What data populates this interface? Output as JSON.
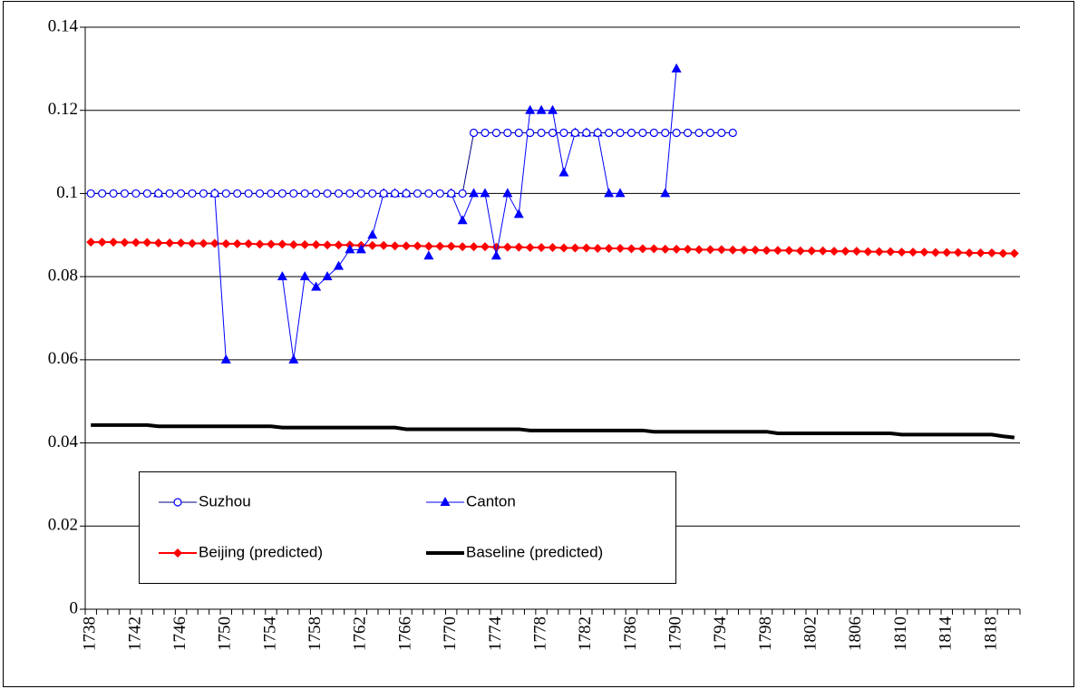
{
  "chart_data": {
    "type": "line",
    "categories": [
      "1738",
      null,
      null,
      null,
      "1742",
      null,
      null,
      null,
      "1746",
      null,
      null,
      null,
      "1750",
      null,
      null,
      null,
      "1754",
      null,
      null,
      null,
      "1758",
      null,
      null,
      null,
      "1762",
      null,
      null,
      null,
      "1766",
      null,
      null,
      null,
      "1770",
      null,
      null,
      null,
      "1774",
      null,
      null,
      null,
      "1778",
      null,
      null,
      null,
      "1782",
      null,
      null,
      null,
      "1786",
      null,
      null,
      null,
      "1790",
      null,
      null,
      null,
      "1794",
      null,
      null,
      null,
      "1798",
      null,
      null,
      null,
      "1802",
      null,
      null,
      null,
      "1806",
      null,
      null,
      null,
      "1810",
      null,
      null,
      null,
      "1814",
      null,
      null,
      null,
      "1818",
      null,
      null
    ],
    "series": [
      {
        "name": "Suzhou",
        "color": "#0000ff",
        "line_color": "#000080",
        "marker": "circle",
        "line_width": 1,
        "values": [
          0.1,
          0.1,
          0.1,
          0.1,
          0.1,
          0.1,
          0.1,
          0.1,
          0.1,
          0.1,
          0.1,
          0.1,
          0.1,
          0.1,
          0.1,
          0.1,
          0.1,
          0.1,
          0.1,
          0.1,
          0.1,
          0.1,
          0.1,
          0.1,
          0.1,
          0.1,
          0.1,
          0.1,
          0.1,
          0.1,
          0.1,
          0.1,
          0.1,
          0.1,
          0.1146,
          0.1146,
          0.1146,
          0.1146,
          0.1146,
          0.1146,
          0.1146,
          0.1146,
          0.1146,
          0.1146,
          0.1146,
          0.1146,
          0.1146,
          0.1146,
          0.1146,
          0.1146,
          0.1146,
          0.1146,
          0.1146,
          0.1146,
          0.1146,
          0.1146,
          0.1146,
          0.1146,
          null,
          null,
          null,
          null,
          null,
          null,
          null,
          null,
          null,
          null,
          null,
          null,
          null,
          null,
          null,
          null,
          null,
          null,
          null,
          null,
          null,
          null,
          null,
          null,
          null
        ]
      },
      {
        "name": "Canton",
        "color": "#0000ff",
        "line_color": "#0000ff",
        "marker": "triangle",
        "line_width": 1,
        "values": [
          null,
          null,
          null,
          null,
          null,
          null,
          0.1,
          null,
          null,
          null,
          null,
          0.1,
          0.06,
          null,
          null,
          null,
          null,
          0.08,
          0.06,
          0.08,
          0.0775,
          0.08,
          0.0825,
          0.0865,
          0.0865,
          0.09,
          0.1,
          0.1,
          0.1,
          null,
          0.085,
          null,
          0.1,
          0.0935,
          0.1,
          0.1,
          0.085,
          0.1,
          0.095,
          0.12,
          0.12,
          0.12,
          0.105,
          0.1146,
          0.1146,
          0.1146,
          0.1,
          0.1,
          null,
          null,
          null,
          0.1,
          0.13,
          null,
          null,
          null,
          null,
          null,
          null,
          null,
          null,
          null,
          null,
          null,
          null,
          null,
          null,
          null,
          null,
          null,
          null,
          null,
          null,
          null,
          null,
          null,
          null,
          null,
          null,
          null,
          null,
          null,
          null
        ]
      },
      {
        "name": "Beijing (predicted)",
        "color": "#ff0000",
        "line_color": "#ff0000",
        "marker": "diamond",
        "line_width": 2,
        "values": [
          0.0883,
          0.0883,
          0.0883,
          0.0882,
          0.0882,
          0.0882,
          0.0881,
          0.0881,
          0.0881,
          0.088,
          0.088,
          0.088,
          0.0879,
          0.0879,
          0.0879,
          0.0878,
          0.0878,
          0.0878,
          0.0877,
          0.0877,
          0.0877,
          0.0876,
          0.0876,
          0.0876,
          0.0875,
          0.0875,
          0.0875,
          0.0874,
          0.0874,
          0.0874,
          0.0873,
          0.0873,
          0.0873,
          0.0872,
          0.0872,
          0.0872,
          0.0871,
          0.0871,
          0.0871,
          0.087,
          0.087,
          0.087,
          0.0869,
          0.0869,
          0.0869,
          0.0868,
          0.0868,
          0.0868,
          0.0867,
          0.0867,
          0.0867,
          0.0866,
          0.0866,
          0.0866,
          0.0865,
          0.0865,
          0.0865,
          0.0864,
          0.0864,
          0.0864,
          0.0863,
          0.0863,
          0.0863,
          0.0862,
          0.0862,
          0.0862,
          0.0861,
          0.0861,
          0.0861,
          0.086,
          0.086,
          0.086,
          0.0859,
          0.0859,
          0.0859,
          0.0858,
          0.0858,
          0.0858,
          0.0857,
          0.0857,
          0.0857,
          0.0856,
          0.0856
        ]
      },
      {
        "name": "Baseline (predicted)",
        "color": "#000000",
        "line_color": "#000000",
        "marker": "none",
        "line_width": 4,
        "values": [
          0.0443,
          0.0443,
          0.0443,
          0.0443,
          0.0443,
          0.0443,
          0.044,
          0.044,
          0.044,
          0.044,
          0.044,
          0.044,
          0.044,
          0.044,
          0.044,
          0.044,
          0.044,
          0.0437,
          0.0437,
          0.0437,
          0.0437,
          0.0437,
          0.0437,
          0.0437,
          0.0437,
          0.0437,
          0.0437,
          0.0437,
          0.0433,
          0.0433,
          0.0433,
          0.0433,
          0.0433,
          0.0433,
          0.0433,
          0.0433,
          0.0433,
          0.0433,
          0.0433,
          0.043,
          0.043,
          0.043,
          0.043,
          0.043,
          0.043,
          0.043,
          0.043,
          0.043,
          0.043,
          0.043,
          0.0427,
          0.0427,
          0.0427,
          0.0427,
          0.0427,
          0.0427,
          0.0427,
          0.0427,
          0.0427,
          0.0427,
          0.0427,
          0.0423,
          0.0423,
          0.0423,
          0.0423,
          0.0423,
          0.0423,
          0.0423,
          0.0423,
          0.0423,
          0.0423,
          0.0423,
          0.042,
          0.042,
          0.042,
          0.042,
          0.042,
          0.042,
          0.042,
          0.042,
          0.042,
          0.0416,
          0.0413
        ]
      }
    ],
    "ylim": [
      0,
      0.14
    ],
    "yticks": [
      0,
      0.02,
      0.04,
      0.06,
      0.08,
      0.1,
      0.12,
      0.14
    ],
    "grid": true,
    "legend": "lower left"
  }
}
